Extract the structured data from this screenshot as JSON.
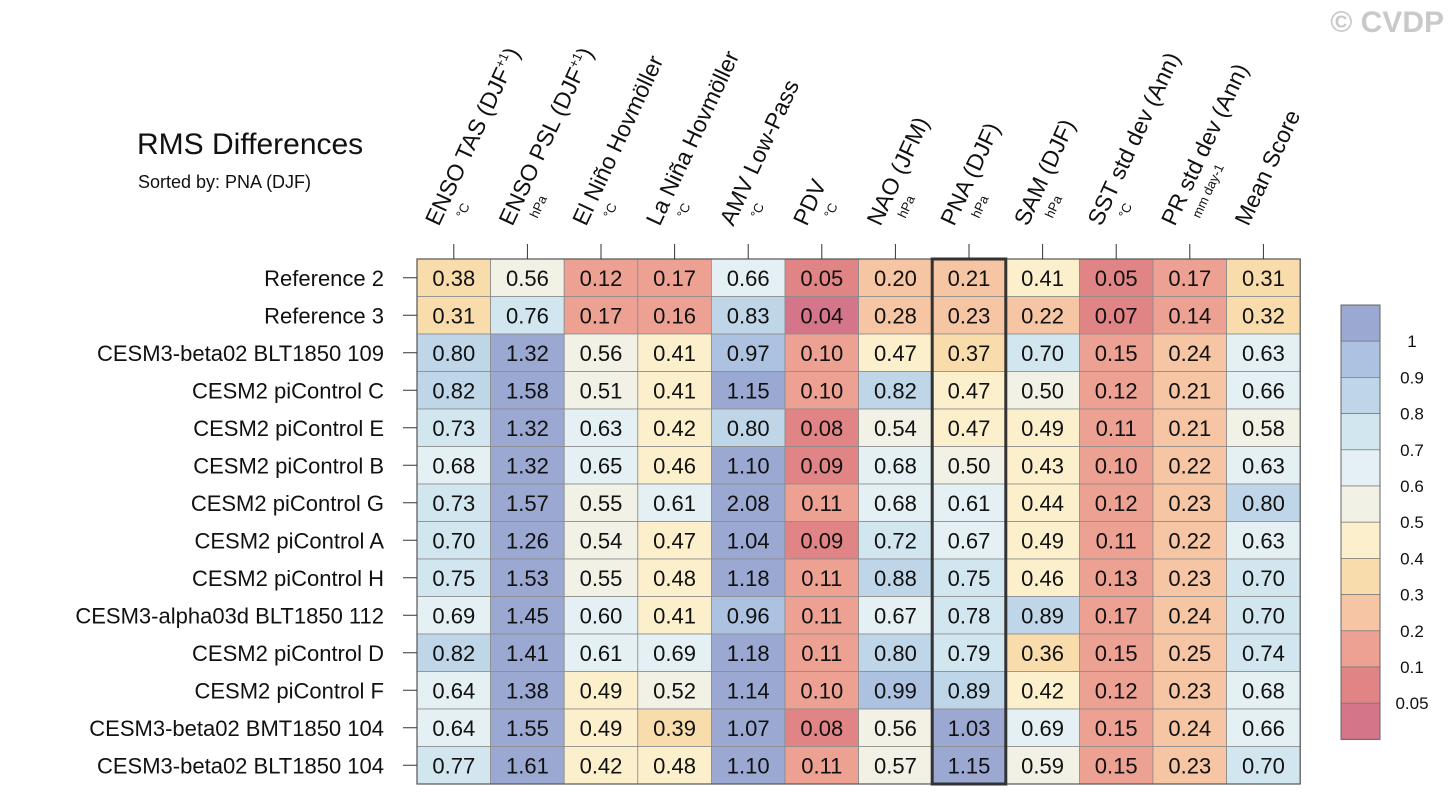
{
  "watermark": "© CVDP",
  "title": "RMS Differences",
  "subtitle": "Sorted by: PNA (DJF)",
  "chart_data": {
    "type": "heatmap",
    "highlighted_column": "PNA (DJF)",
    "columns": [
      {
        "label": "ENSO TAS (DJF",
        "sup": "+1",
        "close": ")",
        "unit": "°C"
      },
      {
        "label": "ENSO PSL (DJF",
        "sup": "+1",
        "close": ")",
        "unit": "hPa"
      },
      {
        "label": "El Niño Hovmöller",
        "sup": "",
        "close": "",
        "unit": "°C"
      },
      {
        "label": "La Niña Hovmöller",
        "sup": "",
        "close": "",
        "unit": "°C"
      },
      {
        "label": "AMV Low-Pass",
        "sup": "",
        "close": "",
        "unit": "°C"
      },
      {
        "label": "PDV",
        "sup": "",
        "close": "",
        "unit": "°C"
      },
      {
        "label": "NAO (JFM)",
        "sup": "",
        "close": "",
        "unit": "hPa"
      },
      {
        "label": "PNA (DJF)",
        "sup": "",
        "close": "",
        "unit": "hPa"
      },
      {
        "label": "SAM (DJF)",
        "sup": "",
        "close": "",
        "unit": "hPa"
      },
      {
        "label": "SST std dev (Ann)",
        "sup": "",
        "close": "",
        "unit": "°C"
      },
      {
        "label": "PR std dev (Ann)",
        "sup": "",
        "close": "",
        "unit": "mm day-1"
      },
      {
        "label": "Mean Score",
        "sup": "",
        "close": "",
        "unit": ""
      }
    ],
    "rows": [
      "Reference 2",
      "Reference 3",
      "CESM3-beta02 BLT1850 109",
      "CESM2 piControl C",
      "CESM2 piControl E",
      "CESM2 piControl B",
      "CESM2 piControl G",
      "CESM2 piControl A",
      "CESM2 piControl H",
      "CESM3-alpha03d BLT1850 112",
      "CESM2 piControl D",
      "CESM2 piControl F",
      "CESM3-beta02 BMT1850 104",
      "CESM3-beta02 BLT1850 104"
    ],
    "values": [
      [
        "0.38",
        "0.56",
        "0.12",
        "0.17",
        "0.66",
        "0.05",
        "0.20",
        "0.21",
        "0.41",
        "0.05",
        "0.17",
        "0.31"
      ],
      [
        "0.31",
        "0.76",
        "0.17",
        "0.16",
        "0.83",
        "0.04",
        "0.28",
        "0.23",
        "0.22",
        "0.07",
        "0.14",
        "0.32"
      ],
      [
        "0.80",
        "1.32",
        "0.56",
        "0.41",
        "0.97",
        "0.10",
        "0.47",
        "0.37",
        "0.70",
        "0.15",
        "0.24",
        "0.63"
      ],
      [
        "0.82",
        "1.58",
        "0.51",
        "0.41",
        "1.15",
        "0.10",
        "0.82",
        "0.47",
        "0.50",
        "0.12",
        "0.21",
        "0.66"
      ],
      [
        "0.73",
        "1.32",
        "0.63",
        "0.42",
        "0.80",
        "0.08",
        "0.54",
        "0.47",
        "0.49",
        "0.11",
        "0.21",
        "0.58"
      ],
      [
        "0.68",
        "1.32",
        "0.65",
        "0.46",
        "1.10",
        "0.09",
        "0.68",
        "0.50",
        "0.43",
        "0.10",
        "0.22",
        "0.63"
      ],
      [
        "0.73",
        "1.57",
        "0.55",
        "0.61",
        "2.08",
        "0.11",
        "0.68",
        "0.61",
        "0.44",
        "0.12",
        "0.23",
        "0.80"
      ],
      [
        "0.70",
        "1.26",
        "0.54",
        "0.47",
        "1.04",
        "0.09",
        "0.72",
        "0.67",
        "0.49",
        "0.11",
        "0.22",
        "0.63"
      ],
      [
        "0.75",
        "1.53",
        "0.55",
        "0.48",
        "1.18",
        "0.11",
        "0.88",
        "0.75",
        "0.46",
        "0.13",
        "0.23",
        "0.70"
      ],
      [
        "0.69",
        "1.45",
        "0.60",
        "0.41",
        "0.96",
        "0.11",
        "0.67",
        "0.78",
        "0.89",
        "0.17",
        "0.24",
        "0.70"
      ],
      [
        "0.82",
        "1.41",
        "0.61",
        "0.69",
        "1.18",
        "0.11",
        "0.80",
        "0.79",
        "0.36",
        "0.15",
        "0.25",
        "0.74"
      ],
      [
        "0.64",
        "1.38",
        "0.49",
        "0.52",
        "1.14",
        "0.10",
        "0.99",
        "0.89",
        "0.42",
        "0.12",
        "0.23",
        "0.68"
      ],
      [
        "0.64",
        "1.55",
        "0.49",
        "0.39",
        "1.07",
        "0.08",
        "0.56",
        "1.03",
        "0.69",
        "0.15",
        "0.24",
        "0.66"
      ],
      [
        "0.77",
        "1.61",
        "0.42",
        "0.48",
        "1.10",
        "0.11",
        "0.57",
        "1.15",
        "0.59",
        "0.15",
        "0.23",
        "0.70"
      ]
    ],
    "colorbar": {
      "levels": [
        "1",
        "0.9",
        "0.8",
        "0.7",
        "0.6",
        "0.5",
        "0.4",
        "0.3",
        "0.2",
        "0.1",
        "0.05"
      ],
      "colors_high_to_low": [
        "#9aa8d2",
        "#adc1e0",
        "#bfd6e8",
        "#d2e6f0",
        "#e4f0f4",
        "#f1f1e6",
        "#fbefcc",
        "#f9dcac",
        "#f6c5a3",
        "#eda193",
        "#e18485",
        "#d47589"
      ]
    }
  }
}
